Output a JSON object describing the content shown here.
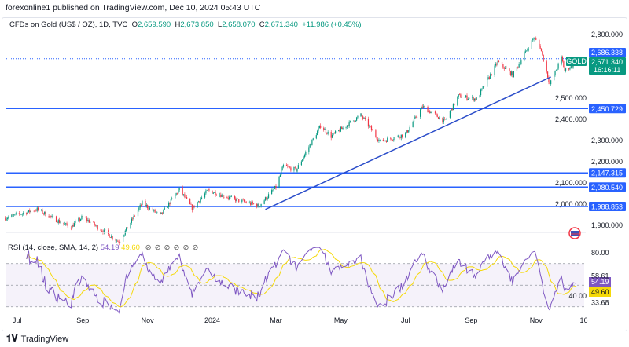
{
  "header": {
    "published": "forexonline1 published on TradingView.com, Dec 10, 2024 05:43 UTC"
  },
  "legend": {
    "symbol": "CFDs on Gold (US$ / OZ), 1D, TVC",
    "open_label": "O",
    "open": "2,659.590",
    "high_label": "H",
    "high": "2,673.850",
    "low_label": "L",
    "low": "2,658.070",
    "close_label": "C",
    "close": "2,671.340",
    "change": "+11.986 (+0.45%)"
  },
  "price_badge": {
    "symbol": "GOLD",
    "price": "2,671.340",
    "countdown": "16:16:11"
  },
  "rsi": {
    "label": "RSI (14, close, SMA, 14, 2)",
    "value": "54.19",
    "sma": "49.60",
    "icons": [
      "hidden-icon",
      "hidden-icon",
      "hidden-icon",
      "hidden-icon",
      "hidden-icon",
      "hidden-icon"
    ],
    "axis_labels": [
      "80.00",
      "58.61",
      "40.00",
      "33.68"
    ],
    "bands": [
      70,
      50,
      30
    ]
  },
  "footer": {
    "brand": "TradingView"
  },
  "colors": {
    "up": "#089981",
    "down": "#f23645",
    "level": "#2962ff",
    "trend": "#2a4cc9",
    "rsi": "#7e57c2",
    "rsi_sma": "#f5d90a"
  },
  "chart_data": {
    "type": "candlestick",
    "price_axis_labels": [
      "2,800.000",
      "2,500.000",
      "2,400.000",
      "2,300.000",
      "2,200.000",
      "2,100.000",
      "2,000.000",
      "1,900.000"
    ],
    "price_ticks": [
      2800,
      2500,
      2400,
      2300,
      2200,
      2100,
      2000,
      1900
    ],
    "time_axis_labels": [
      "Jul",
      "Sep",
      "Nov",
      "2024",
      "Mar",
      "May",
      "Jul",
      "Sep",
      "Nov",
      "16"
    ],
    "time_ticks": [
      "2023-07-01",
      "2023-09-01",
      "2023-11-01",
      "2024-01-01",
      "2024-03-01",
      "2024-05-01",
      "2024-07-01",
      "2024-09-01",
      "2024-11-01",
      "2024-12-16"
    ],
    "horizontal_levels": [
      {
        "value": 2686.338,
        "label": "2,686.338",
        "style": "dotted"
      },
      {
        "value": 2450.729,
        "label": "2,450.729"
      },
      {
        "value": 2147.315,
        "label": "2,147.315"
      },
      {
        "value": 2080.54,
        "label": "2,080.540"
      },
      {
        "value": 1988.853,
        "label": "1,988.853"
      }
    ],
    "trend_line": [
      {
        "date": "2024-02-20",
        "price": 1975
      },
      {
        "date": "2024-11-15",
        "price": 2600
      }
    ],
    "approx_closes": [
      [
        "2023-06-20",
        1935
      ],
      [
        "2023-07-20",
        1975
      ],
      [
        "2023-08-20",
        1890
      ],
      [
        "2023-09-01",
        1940
      ],
      [
        "2023-10-05",
        1822
      ],
      [
        "2023-10-27",
        2005
      ],
      [
        "2023-11-13",
        1945
      ],
      [
        "2023-12-01",
        2070
      ],
      [
        "2023-12-13",
        1980
      ],
      [
        "2023-12-28",
        2065
      ],
      [
        "2024-01-20",
        2025
      ],
      [
        "2024-02-14",
        1992
      ],
      [
        "2024-03-01",
        2080
      ],
      [
        "2024-03-08",
        2180
      ],
      [
        "2024-03-20",
        2160
      ],
      [
        "2024-04-12",
        2370
      ],
      [
        "2024-04-22",
        2320
      ],
      [
        "2024-05-20",
        2420
      ],
      [
        "2024-06-07",
        2295
      ],
      [
        "2024-07-01",
        2330
      ],
      [
        "2024-07-17",
        2460
      ],
      [
        "2024-08-07",
        2390
      ],
      [
        "2024-08-20",
        2510
      ],
      [
        "2024-09-06",
        2495
      ],
      [
        "2024-09-26",
        2670
      ],
      [
        "2024-10-10",
        2610
      ],
      [
        "2024-10-30",
        2785
      ],
      [
        "2024-11-05",
        2740
      ],
      [
        "2024-11-14",
        2565
      ],
      [
        "2024-11-25",
        2690
      ],
      [
        "2024-11-28",
        2630
      ],
      [
        "2024-12-10",
        2671
      ]
    ]
  }
}
